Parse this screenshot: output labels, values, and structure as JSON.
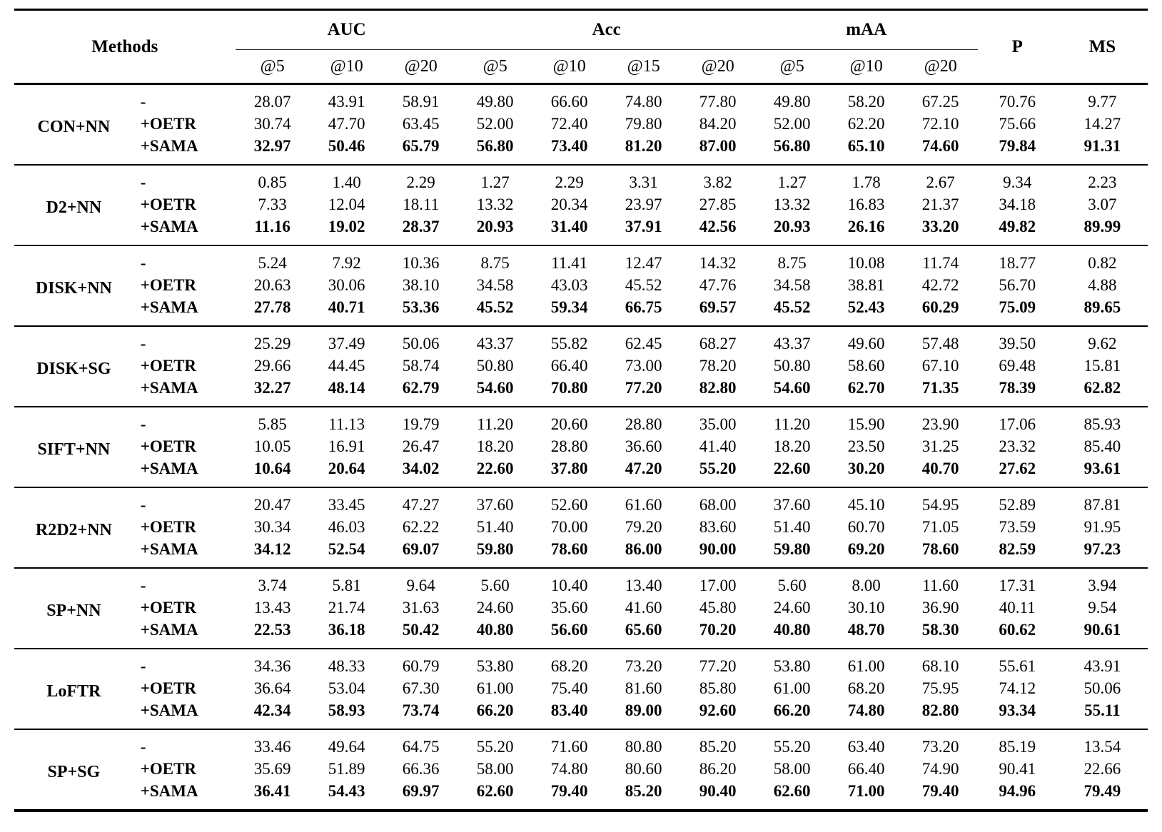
{
  "table": {
    "header": {
      "methods_label": "Methods",
      "groups": [
        {
          "label": "AUC",
          "subcols": [
            "@5",
            "@10",
            "@20"
          ]
        },
        {
          "label": "Acc",
          "subcols": [
            "@5",
            "@10",
            "@15",
            "@20"
          ]
        },
        {
          "label": "mAA",
          "subcols": [
            "@5",
            "@10",
            "@20"
          ]
        }
      ],
      "p_label": "P",
      "ms_label": "MS"
    },
    "colors": {
      "text": "#000000",
      "background": "#ffffff",
      "rule": "#000000"
    },
    "blocks": [
      {
        "method": "CON+NN",
        "rows": [
          {
            "variant": "-",
            "bold": false,
            "values": [
              "28.07",
              "43.91",
              "58.91",
              "49.80",
              "66.60",
              "74.80",
              "77.80",
              "49.80",
              "58.20",
              "67.25",
              "70.76",
              "9.77"
            ]
          },
          {
            "variant": "+OETR",
            "bold": false,
            "values": [
              "30.74",
              "47.70",
              "63.45",
              "52.00",
              "72.40",
              "79.80",
              "84.20",
              "52.00",
              "62.20",
              "72.10",
              "75.66",
              "14.27"
            ]
          },
          {
            "variant": "+SAMA",
            "bold": true,
            "values": [
              "32.97",
              "50.46",
              "65.79",
              "56.80",
              "73.40",
              "81.20",
              "87.00",
              "56.80",
              "65.10",
              "74.60",
              "79.84",
              "91.31"
            ]
          }
        ]
      },
      {
        "method": "D2+NN",
        "rows": [
          {
            "variant": "-",
            "bold": false,
            "values": [
              "0.85",
              "1.40",
              "2.29",
              "1.27",
              "2.29",
              "3.31",
              "3.82",
              "1.27",
              "1.78",
              "2.67",
              "9.34",
              "2.23"
            ]
          },
          {
            "variant": "+OETR",
            "bold": false,
            "values": [
              "7.33",
              "12.04",
              "18.11",
              "13.32",
              "20.34",
              "23.97",
              "27.85",
              "13.32",
              "16.83",
              "21.37",
              "34.18",
              "3.07"
            ]
          },
          {
            "variant": "+SAMA",
            "bold": true,
            "values": [
              "11.16",
              "19.02",
              "28.37",
              "20.93",
              "31.40",
              "37.91",
              "42.56",
              "20.93",
              "26.16",
              "33.20",
              "49.82",
              "89.99"
            ]
          }
        ]
      },
      {
        "method": "DISK+NN",
        "rows": [
          {
            "variant": "-",
            "bold": false,
            "values": [
              "5.24",
              "7.92",
              "10.36",
              "8.75",
              "11.41",
              "12.47",
              "14.32",
              "8.75",
              "10.08",
              "11.74",
              "18.77",
              "0.82"
            ]
          },
          {
            "variant": "+OETR",
            "bold": false,
            "values": [
              "20.63",
              "30.06",
              "38.10",
              "34.58",
              "43.03",
              "45.52",
              "47.76",
              "34.58",
              "38.81",
              "42.72",
              "56.70",
              "4.88"
            ]
          },
          {
            "variant": "+SAMA",
            "bold": true,
            "values": [
              "27.78",
              "40.71",
              "53.36",
              "45.52",
              "59.34",
              "66.75",
              "69.57",
              "45.52",
              "52.43",
              "60.29",
              "75.09",
              "89.65"
            ]
          }
        ]
      },
      {
        "method": "DISK+SG",
        "rows": [
          {
            "variant": "-",
            "bold": false,
            "values": [
              "25.29",
              "37.49",
              "50.06",
              "43.37",
              "55.82",
              "62.45",
              "68.27",
              "43.37",
              "49.60",
              "57.48",
              "39.50",
              "9.62"
            ]
          },
          {
            "variant": "+OETR",
            "bold": false,
            "values": [
              "29.66",
              "44.45",
              "58.74",
              "50.80",
              "66.40",
              "73.00",
              "78.20",
              "50.80",
              "58.60",
              "67.10",
              "69.48",
              "15.81"
            ]
          },
          {
            "variant": "+SAMA",
            "bold": true,
            "values": [
              "32.27",
              "48.14",
              "62.79",
              "54.60",
              "70.80",
              "77.20",
              "82.80",
              "54.60",
              "62.70",
              "71.35",
              "78.39",
              "62.82"
            ]
          }
        ]
      },
      {
        "method": "SIFT+NN",
        "rows": [
          {
            "variant": "-",
            "bold": false,
            "values": [
              "5.85",
              "11.13",
              "19.79",
              "11.20",
              "20.60",
              "28.80",
              "35.00",
              "11.20",
              "15.90",
              "23.90",
              "17.06",
              "85.93"
            ]
          },
          {
            "variant": "+OETR",
            "bold": false,
            "values": [
              "10.05",
              "16.91",
              "26.47",
              "18.20",
              "28.80",
              "36.60",
              "41.40",
              "18.20",
              "23.50",
              "31.25",
              "23.32",
              "85.40"
            ]
          },
          {
            "variant": "+SAMA",
            "bold": true,
            "values": [
              "10.64",
              "20.64",
              "34.02",
              "22.60",
              "37.80",
              "47.20",
              "55.20",
              "22.60",
              "30.20",
              "40.70",
              "27.62",
              "93.61"
            ]
          }
        ]
      },
      {
        "method": "R2D2+NN",
        "rows": [
          {
            "variant": "-",
            "bold": false,
            "values": [
              "20.47",
              "33.45",
              "47.27",
              "37.60",
              "52.60",
              "61.60",
              "68.00",
              "37.60",
              "45.10",
              "54.95",
              "52.89",
              "87.81"
            ]
          },
          {
            "variant": "+OETR",
            "bold": false,
            "values": [
              "30.34",
              "46.03",
              "62.22",
              "51.40",
              "70.00",
              "79.20",
              "83.60",
              "51.40",
              "60.70",
              "71.05",
              "73.59",
              "91.95"
            ]
          },
          {
            "variant": "+SAMA",
            "bold": true,
            "values": [
              "34.12",
              "52.54",
              "69.07",
              "59.80",
              "78.60",
              "86.00",
              "90.00",
              "59.80",
              "69.20",
              "78.60",
              "82.59",
              "97.23"
            ]
          }
        ]
      },
      {
        "method": "SP+NN",
        "rows": [
          {
            "variant": "-",
            "bold": false,
            "values": [
              "3.74",
              "5.81",
              "9.64",
              "5.60",
              "10.40",
              "13.40",
              "17.00",
              "5.60",
              "8.00",
              "11.60",
              "17.31",
              "3.94"
            ]
          },
          {
            "variant": "+OETR",
            "bold": false,
            "values": [
              "13.43",
              "21.74",
              "31.63",
              "24.60",
              "35.60",
              "41.60",
              "45.80",
              "24.60",
              "30.10",
              "36.90",
              "40.11",
              "9.54"
            ]
          },
          {
            "variant": "+SAMA",
            "bold": true,
            "values": [
              "22.53",
              "36.18",
              "50.42",
              "40.80",
              "56.60",
              "65.60",
              "70.20",
              "40.80",
              "48.70",
              "58.30",
              "60.62",
              "90.61"
            ]
          }
        ]
      },
      {
        "method": "LoFTR",
        "rows": [
          {
            "variant": "-",
            "bold": false,
            "values": [
              "34.36",
              "48.33",
              "60.79",
              "53.80",
              "68.20",
              "73.20",
              "77.20",
              "53.80",
              "61.00",
              "68.10",
              "55.61",
              "43.91"
            ]
          },
          {
            "variant": "+OETR",
            "bold": false,
            "values": [
              "36.64",
              "53.04",
              "67.30",
              "61.00",
              "75.40",
              "81.60",
              "85.80",
              "61.00",
              "68.20",
              "75.95",
              "74.12",
              "50.06"
            ]
          },
          {
            "variant": "+SAMA",
            "bold": true,
            "values": [
              "42.34",
              "58.93",
              "73.74",
              "66.20",
              "83.40",
              "89.00",
              "92.60",
              "66.20",
              "74.80",
              "82.80",
              "93.34",
              "55.11"
            ]
          }
        ]
      },
      {
        "method": "SP+SG",
        "rows": [
          {
            "variant": "-",
            "bold": false,
            "values": [
              "33.46",
              "49.64",
              "64.75",
              "55.20",
              "71.60",
              "80.80",
              "85.20",
              "55.20",
              "63.40",
              "73.20",
              "85.19",
              "13.54"
            ]
          },
          {
            "variant": "+OETR",
            "bold": false,
            "values": [
              "35.69",
              "51.89",
              "66.36",
              "58.00",
              "74.80",
              "80.60",
              "86.20",
              "58.00",
              "66.40",
              "74.90",
              "90.41",
              "22.66"
            ]
          },
          {
            "variant": "+SAMA",
            "bold": true,
            "values": [
              "36.41",
              "54.43",
              "69.97",
              "62.60",
              "79.40",
              "85.20",
              "90.40",
              "62.60",
              "71.00",
              "79.40",
              "94.96",
              "79.49"
            ]
          }
        ]
      }
    ]
  }
}
